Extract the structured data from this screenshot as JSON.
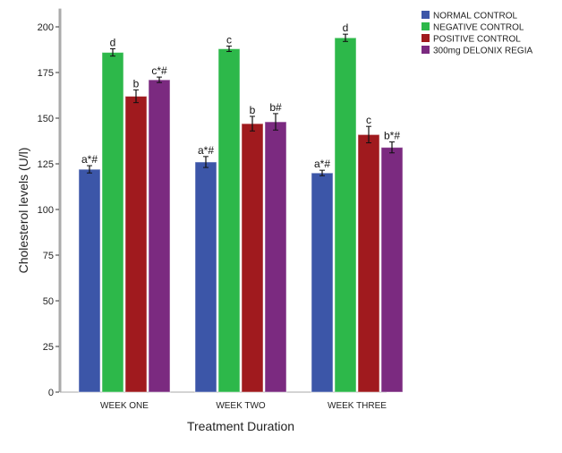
{
  "chart_data": {
    "type": "bar",
    "title": "",
    "xlabel": "Treatment Duration",
    "ylabel": "Cholesterol levels (U/l)",
    "ylim": [
      0,
      210
    ],
    "yticks": [
      0,
      25,
      50,
      75,
      100,
      125,
      150,
      175,
      200
    ],
    "grid": false,
    "legend_position": "top-right",
    "categories": [
      "WEEK ONE",
      "WEEK TWO",
      "WEEK THREE"
    ],
    "series": [
      {
        "name": "NORMAL CONTROL",
        "color": "#3c56a8",
        "values": [
          122,
          126,
          120
        ],
        "errors": [
          2,
          3,
          1.5
        ],
        "labels": [
          "a*#",
          "a*#",
          "a*#"
        ]
      },
      {
        "name": "NEGATIVE CONTROL",
        "color": "#2db84a",
        "values": [
          186,
          188,
          194
        ],
        "errors": [
          2,
          1.5,
          2
        ],
        "labels": [
          "d",
          "c",
          "d"
        ]
      },
      {
        "name": "POSITIVE CONTROL",
        "color": "#a01a1e",
        "values": [
          162,
          147,
          141
        ],
        "errors": [
          3.5,
          4,
          4.5
        ],
        "labels": [
          "b",
          "b",
          "c"
        ]
      },
      {
        "name": "300mg DELONIX REGIA",
        "color": "#7b2a80",
        "values": [
          171,
          148,
          134
        ],
        "errors": [
          1.5,
          4.5,
          3
        ],
        "labels": [
          "c*#",
          "b#",
          "b*#"
        ]
      }
    ]
  }
}
